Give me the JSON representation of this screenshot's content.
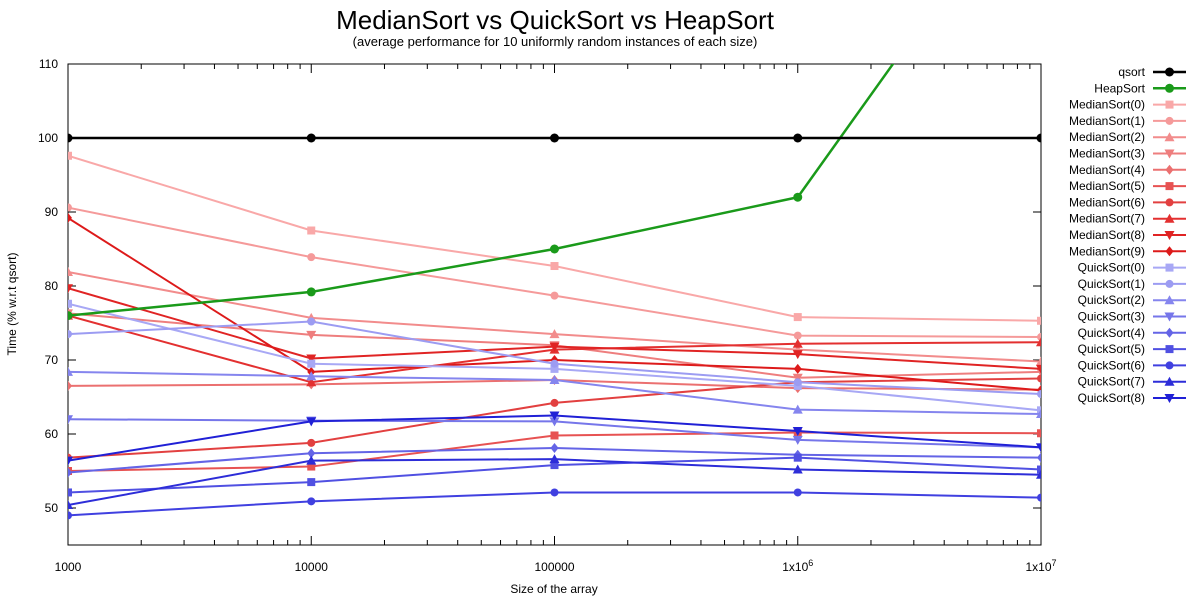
{
  "chart_data": {
    "type": "line",
    "title": "MedianSort vs QuickSort vs HeapSort",
    "subtitle": "(average performance for 10 uniformly random instances of each size)",
    "xlabel": "Size of the array",
    "ylabel": "Time (% w.r.t qsort)",
    "x_scale": "log",
    "x": [
      1000,
      10000,
      100000,
      1000000,
      10000000
    ],
    "xlim": [
      1000,
      10000000
    ],
    "ylim": [
      45,
      110
    ],
    "x_tick_labels": [
      "1000",
      "10000",
      "100000",
      "1x10",
      "1x10"
    ],
    "x_tick_exponents": [
      "",
      "",
      "",
      "6",
      "7"
    ],
    "y_ticks": [
      50,
      60,
      70,
      80,
      90,
      100,
      110
    ],
    "grid": false,
    "legend_position": "right",
    "series": [
      {
        "name": "qsort",
        "color": "#000000",
        "marker": "circle",
        "width": 2.5,
        "values": [
          100,
          100,
          100,
          100,
          100
        ]
      },
      {
        "name": "HeapSort",
        "color": "#1a9a1a",
        "marker": "circle",
        "width": 2.5,
        "values": [
          76.0,
          79.2,
          85.0,
          92.0,
          138.0
        ]
      },
      {
        "name": "MedianSort(0)",
        "color": "#f9a8a8",
        "marker": "square",
        "width": 2,
        "values": [
          97.6,
          87.5,
          82.7,
          75.8,
          75.3
        ]
      },
      {
        "name": "MedianSort(1)",
        "color": "#f59a9a",
        "marker": "circle",
        "width": 2,
        "values": [
          90.6,
          83.9,
          78.7,
          73.3,
          73.1
        ]
      },
      {
        "name": "MedianSort(2)",
        "color": "#f28c8c",
        "marker": "triangle-up",
        "width": 2,
        "values": [
          81.9,
          75.7,
          73.5,
          71.4,
          69.8
        ]
      },
      {
        "name": "MedianSort(3)",
        "color": "#ee7e7e",
        "marker": "triangle-down",
        "width": 2,
        "values": [
          76.3,
          73.4,
          72.0,
          67.6,
          68.4
        ]
      },
      {
        "name": "MedianSort(4)",
        "color": "#eb7070",
        "marker": "diamond",
        "width": 2,
        "values": [
          66.5,
          66.7,
          67.3,
          66.2,
          66.0
        ]
      },
      {
        "name": "MedianSort(5)",
        "color": "#e75252",
        "marker": "square",
        "width": 2,
        "values": [
          55.0,
          55.6,
          59.8,
          60.2,
          60.1
        ]
      },
      {
        "name": "MedianSort(6)",
        "color": "#e24040",
        "marker": "circle",
        "width": 2,
        "values": [
          56.8,
          58.8,
          64.2,
          67.0,
          67.5
        ]
      },
      {
        "name": "MedianSort(7)",
        "color": "#e33030",
        "marker": "triangle-up",
        "width": 2,
        "values": [
          76.0,
          67.0,
          71.4,
          72.2,
          72.4
        ]
      },
      {
        "name": "MedianSort(8)",
        "color": "#e02424",
        "marker": "triangle-down",
        "width": 2,
        "values": [
          79.7,
          70.2,
          71.8,
          70.8,
          68.8
        ]
      },
      {
        "name": "MedianSort(9)",
        "color": "#dd1a1a",
        "marker": "diamond",
        "width": 2,
        "values": [
          89.2,
          68.4,
          70.0,
          68.8,
          65.9
        ]
      },
      {
        "name": "QuickSort(0)",
        "color": "#a8a8f5",
        "marker": "square",
        "width": 2,
        "values": [
          77.6,
          69.5,
          68.8,
          66.5,
          63.2
        ]
      },
      {
        "name": "QuickSort(1)",
        "color": "#9c9cf2",
        "marker": "circle",
        "width": 2,
        "values": [
          73.5,
          75.2,
          69.5,
          67.0,
          65.4
        ]
      },
      {
        "name": "QuickSort(2)",
        "color": "#8585ee",
        "marker": "triangle-up",
        "width": 2,
        "values": [
          68.4,
          67.8,
          67.3,
          63.3,
          62.7
        ]
      },
      {
        "name": "QuickSort(3)",
        "color": "#7676ea",
        "marker": "triangle-down",
        "width": 2,
        "values": [
          62.0,
          61.8,
          61.7,
          59.2,
          58.2
        ]
      },
      {
        "name": "QuickSort(4)",
        "color": "#6464e6",
        "marker": "diamond",
        "width": 2,
        "values": [
          54.8,
          57.4,
          58.1,
          57.2,
          56.8
        ]
      },
      {
        "name": "QuickSort(5)",
        "color": "#5050e2",
        "marker": "square",
        "width": 2,
        "values": [
          52.1,
          53.5,
          55.8,
          56.8,
          55.2
        ]
      },
      {
        "name": "QuickSort(6)",
        "color": "#4040e0",
        "marker": "circle",
        "width": 2,
        "values": [
          49.0,
          50.9,
          52.1,
          52.1,
          51.4
        ]
      },
      {
        "name": "QuickSort(7)",
        "color": "#2d2dd8",
        "marker": "triangle-up",
        "width": 2,
        "values": [
          50.4,
          56.4,
          56.6,
          55.2,
          54.5
        ]
      },
      {
        "name": "QuickSort(8)",
        "color": "#2020d6",
        "marker": "triangle-down",
        "width": 2,
        "values": [
          56.4,
          61.7,
          62.5,
          60.4,
          58.2
        ]
      }
    ]
  }
}
